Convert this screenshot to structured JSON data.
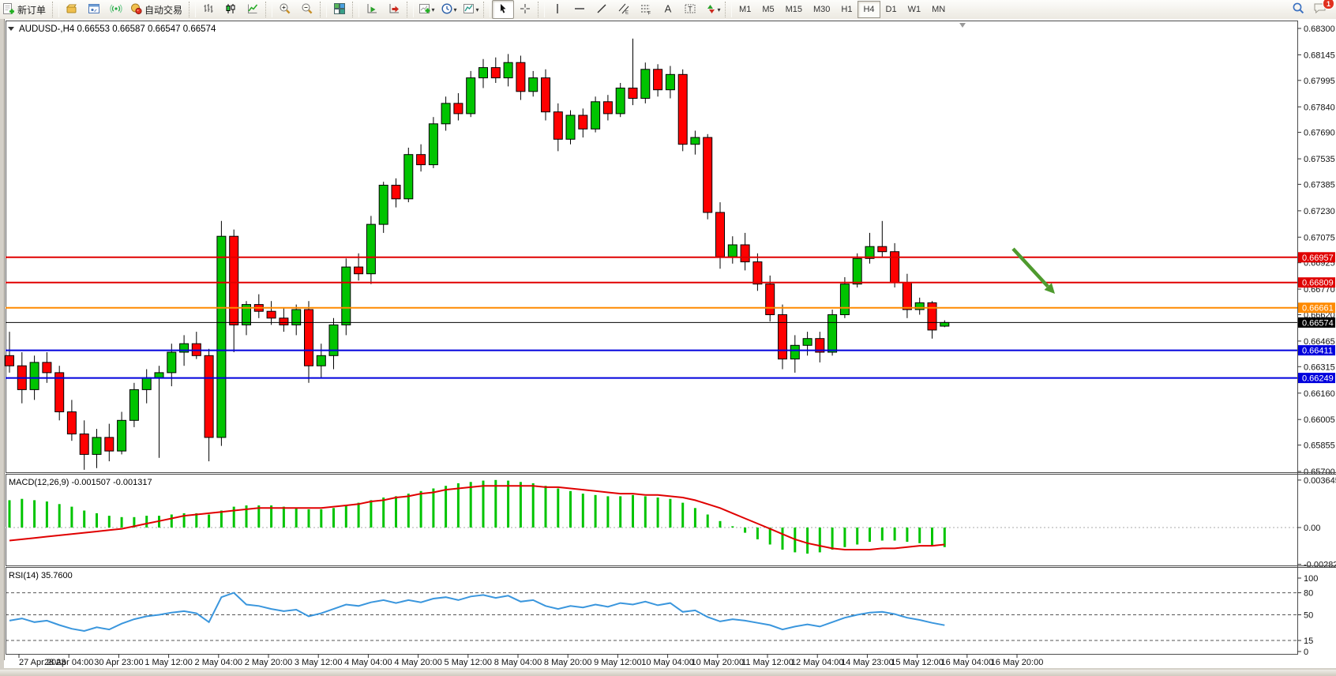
{
  "toolbar": {
    "new_order_label": "新订单",
    "autotrade_label": "自动交易",
    "timeframes": [
      "M1",
      "M5",
      "M15",
      "M30",
      "H1",
      "H4",
      "D1",
      "W1",
      "MN"
    ],
    "active_timeframe": "H4",
    "notification_count": "1"
  },
  "chart": {
    "symbol_period": "AUDUSD-,H4",
    "ohlc_line": "0.66553 0.66587 0.66547 0.66574"
  },
  "chart_data": {
    "type": "candlestick",
    "symbol": "AUDUSD",
    "period": "H4",
    "title": "AUDUSD-,H4",
    "price_ticks": [
      "0.68300",
      "0.68145",
      "0.67995",
      "0.67840",
      "0.67690",
      "0.67535",
      "0.67385",
      "0.67230",
      "0.67075",
      "0.66925",
      "0.66770",
      "0.66620",
      "0.66465",
      "0.66315",
      "0.66160",
      "0.66005",
      "0.65855",
      "0.65700"
    ],
    "x_labels": [
      "27 Apr 2023",
      "28 Apr 04:00",
      "30 Apr 23:00",
      "1 May 12:00",
      "2 May 04:00",
      "2 May 20:00",
      "3 May 12:00",
      "4 May 04:00",
      "4 May 20:00",
      "5 May 12:00",
      "8 May 04:00",
      "8 May 20:00",
      "9 May 12:00",
      "10 May 04:00",
      "10 May 20:00",
      "11 May 12:00",
      "12 May 04:00",
      "14 May 23:00",
      "15 May 12:00",
      "16 May 04:00",
      "16 May 20:00"
    ],
    "candles": [
      [
        0.6638,
        0.6652,
        0.6628,
        0.6632
      ],
      [
        0.6632,
        0.664,
        0.661,
        0.6618
      ],
      [
        0.6618,
        0.6638,
        0.6612,
        0.6634
      ],
      [
        0.6634,
        0.664,
        0.6622,
        0.6628
      ],
      [
        0.6628,
        0.6632,
        0.66,
        0.6605
      ],
      [
        0.6605,
        0.6612,
        0.6588,
        0.6592
      ],
      [
        0.6592,
        0.66,
        0.6571,
        0.658
      ],
      [
        0.658,
        0.6595,
        0.6572,
        0.659
      ],
      [
        0.659,
        0.6598,
        0.6576,
        0.6582
      ],
      [
        0.6582,
        0.6605,
        0.658,
        0.66
      ],
      [
        0.66,
        0.6622,
        0.6596,
        0.6618
      ],
      [
        0.6618,
        0.663,
        0.661,
        0.6625
      ],
      [
        0.6625,
        0.6632,
        0.6578,
        0.6628
      ],
      [
        0.6628,
        0.6645,
        0.662,
        0.664
      ],
      [
        0.664,
        0.665,
        0.6632,
        0.6645
      ],
      [
        0.6645,
        0.6652,
        0.6636,
        0.6638
      ],
      [
        0.6638,
        0.6642,
        0.6576,
        0.659
      ],
      [
        0.659,
        0.6717,
        0.6585,
        0.6708
      ],
      [
        0.6708,
        0.6712,
        0.664,
        0.6656
      ],
      [
        0.6656,
        0.667,
        0.665,
        0.6668
      ],
      [
        0.6668,
        0.6674,
        0.666,
        0.6664
      ],
      [
        0.6664,
        0.667,
        0.6656,
        0.666
      ],
      [
        0.666,
        0.6666,
        0.6652,
        0.6656
      ],
      [
        0.6656,
        0.6668,
        0.665,
        0.6665
      ],
      [
        0.6665,
        0.667,
        0.6622,
        0.6632
      ],
      [
        0.6632,
        0.6645,
        0.6625,
        0.6638
      ],
      [
        0.6638,
        0.666,
        0.663,
        0.6656
      ],
      [
        0.6656,
        0.6695,
        0.665,
        0.669
      ],
      [
        0.669,
        0.6698,
        0.6682,
        0.6686
      ],
      [
        0.6686,
        0.672,
        0.668,
        0.6715
      ],
      [
        0.6715,
        0.674,
        0.671,
        0.6738
      ],
      [
        0.6738,
        0.6742,
        0.6725,
        0.673
      ],
      [
        0.673,
        0.676,
        0.6728,
        0.6756
      ],
      [
        0.6756,
        0.6762,
        0.6746,
        0.675
      ],
      [
        0.675,
        0.6778,
        0.6748,
        0.6774
      ],
      [
        0.6774,
        0.679,
        0.677,
        0.6786
      ],
      [
        0.6786,
        0.6792,
        0.6776,
        0.678
      ],
      [
        0.678,
        0.6805,
        0.6778,
        0.6801
      ],
      [
        0.6801,
        0.6812,
        0.6795,
        0.6807
      ],
      [
        0.6807,
        0.6813,
        0.6798,
        0.6801
      ],
      [
        0.6801,
        0.6815,
        0.6796,
        0.681
      ],
      [
        0.681,
        0.6814,
        0.6788,
        0.6793
      ],
      [
        0.6793,
        0.6805,
        0.679,
        0.6801
      ],
      [
        0.6801,
        0.6806,
        0.6776,
        0.6781
      ],
      [
        0.6781,
        0.6786,
        0.6758,
        0.6765
      ],
      [
        0.6765,
        0.6782,
        0.6762,
        0.6779
      ],
      [
        0.6779,
        0.6783,
        0.6766,
        0.6771
      ],
      [
        0.6771,
        0.679,
        0.6769,
        0.6787
      ],
      [
        0.6787,
        0.6791,
        0.6776,
        0.678
      ],
      [
        0.678,
        0.6798,
        0.6778,
        0.6795
      ],
      [
        0.6795,
        0.6824,
        0.6785,
        0.6789
      ],
      [
        0.6789,
        0.681,
        0.6786,
        0.6806
      ],
      [
        0.6806,
        0.6809,
        0.679,
        0.6794
      ],
      [
        0.6794,
        0.6808,
        0.6789,
        0.6803
      ],
      [
        0.6803,
        0.6806,
        0.6758,
        0.6762
      ],
      [
        0.6762,
        0.677,
        0.6756,
        0.6766
      ],
      [
        0.6766,
        0.6768,
        0.6718,
        0.6722
      ],
      [
        0.6722,
        0.6728,
        0.6689,
        0.6696
      ],
      [
        0.6696,
        0.6708,
        0.6692,
        0.6703
      ],
      [
        0.6703,
        0.671,
        0.6688,
        0.6693
      ],
      [
        0.6693,
        0.6698,
        0.6676,
        0.668
      ],
      [
        0.668,
        0.6685,
        0.6658,
        0.6662
      ],
      [
        0.6662,
        0.6668,
        0.663,
        0.6636
      ],
      [
        0.6636,
        0.665,
        0.6628,
        0.6644
      ],
      [
        0.6644,
        0.6652,
        0.6638,
        0.6648
      ],
      [
        0.6648,
        0.6652,
        0.6634,
        0.664
      ],
      [
        0.664,
        0.6665,
        0.6638,
        0.6662
      ],
      [
        0.6662,
        0.6684,
        0.666,
        0.668
      ],
      [
        0.668,
        0.6698,
        0.6678,
        0.6695
      ],
      [
        0.6695,
        0.671,
        0.6692,
        0.6702
      ],
      [
        0.6702,
        0.6717,
        0.6696,
        0.6699
      ],
      [
        0.6699,
        0.6704,
        0.6678,
        0.6681
      ],
      [
        0.6681,
        0.6686,
        0.666,
        0.6665
      ],
      [
        0.6665,
        0.6672,
        0.6662,
        0.6669
      ],
      [
        0.6669,
        0.667,
        0.6648,
        0.6653
      ],
      [
        0.66553,
        0.66587,
        0.66547,
        0.66574
      ]
    ],
    "horizontal_lines": [
      {
        "price": 0.66957,
        "label": "0.66957",
        "color": "#e00000",
        "width": 2
      },
      {
        "price": 0.66809,
        "label": "0.66809",
        "color": "#e00000",
        "width": 2
      },
      {
        "price": 0.66661,
        "label": "0.66661",
        "color": "#ff8a00",
        "width": 2
      },
      {
        "price": 0.66574,
        "label": "0.66574",
        "color": "#000000",
        "width": 1,
        "current": true
      },
      {
        "price": 0.66411,
        "label": "0.66411",
        "color": "#0000dd",
        "width": 2
      },
      {
        "price": 0.66249,
        "label": "0.66249",
        "color": "#0000dd",
        "width": 2
      }
    ],
    "indicators": {
      "macd": {
        "name": "MACD(12,26,9)",
        "values_text": "-0.001507 -0.001317",
        "axis_labels": [
          "0.003645",
          "0.00",
          "-0.002824"
        ],
        "histogram": [
          0.0021,
          0.0022,
          0.0021,
          0.002,
          0.0018,
          0.0016,
          0.0013,
          0.0011,
          0.0009,
          0.0008,
          0.0008,
          0.0009,
          0.0009,
          0.001,
          0.0011,
          0.0011,
          0.001,
          0.0013,
          0.0016,
          0.0017,
          0.0017,
          0.0017,
          0.0016,
          0.0015,
          0.0014,
          0.0014,
          0.0015,
          0.0017,
          0.0019,
          0.0021,
          0.0023,
          0.0024,
          0.0026,
          0.0028,
          0.003,
          0.0032,
          0.0034,
          0.0035,
          0.0036,
          0.00365,
          0.0036,
          0.0035,
          0.0034,
          0.0032,
          0.003,
          0.0028,
          0.0026,
          0.0025,
          0.0024,
          0.0024,
          0.0025,
          0.0024,
          0.0023,
          0.0022,
          0.0019,
          0.0015,
          0.001,
          0.0005,
          0.0001,
          -0.0004,
          -0.0009,
          -0.0013,
          -0.0017,
          -0.0019,
          -0.002,
          -0.0019,
          -0.0017,
          -0.0015,
          -0.0013,
          -0.0011,
          -0.001,
          -0.001,
          -0.0011,
          -0.0012,
          -0.0014,
          -0.0015
        ],
        "signal": [
          -0.001,
          -0.0009,
          -0.0008,
          -0.0007,
          -0.0006,
          -0.0005,
          -0.0004,
          -0.0003,
          -0.0002,
          -0.0001,
          0.0001,
          0.0003,
          0.0005,
          0.0007,
          0.0009,
          0.001,
          0.0011,
          0.0012,
          0.0013,
          0.0014,
          0.0015,
          0.0015,
          0.0015,
          0.0015,
          0.0015,
          0.0015,
          0.0016,
          0.0017,
          0.0018,
          0.002,
          0.0021,
          0.0023,
          0.0024,
          0.0026,
          0.0027,
          0.0029,
          0.003,
          0.0031,
          0.0032,
          0.0032,
          0.0032,
          0.0032,
          0.0032,
          0.0031,
          0.0031,
          0.003,
          0.0029,
          0.0028,
          0.0027,
          0.0026,
          0.0026,
          0.0025,
          0.0025,
          0.0024,
          0.0023,
          0.0021,
          0.0018,
          0.0015,
          0.0011,
          0.0007,
          0.0003,
          -0.0001,
          -0.0005,
          -0.0009,
          -0.0012,
          -0.0014,
          -0.0016,
          -0.0017,
          -0.0017,
          -0.0017,
          -0.0016,
          -0.0016,
          -0.0015,
          -0.0014,
          -0.0014,
          -0.0013
        ]
      },
      "rsi": {
        "name": "RSI(14)",
        "values_text": "35.7600",
        "levels": [
          80,
          50,
          15
        ],
        "axis_labels": [
          "100",
          "80",
          "50",
          "15",
          "0"
        ],
        "values": [
          42,
          45,
          40,
          42,
          36,
          31,
          28,
          33,
          30,
          38,
          44,
          48,
          50,
          53,
          55,
          52,
          40,
          74,
          80,
          64,
          62,
          58,
          55,
          57,
          48,
          52,
          58,
          64,
          62,
          67,
          70,
          66,
          70,
          67,
          72,
          74,
          70,
          75,
          77,
          73,
          76,
          68,
          70,
          62,
          58,
          62,
          60,
          64,
          61,
          66,
          64,
          68,
          63,
          66,
          54,
          56,
          47,
          41,
          44,
          42,
          39,
          36,
          30,
          34,
          37,
          34,
          40,
          46,
          50,
          53,
          54,
          51,
          46,
          43,
          39,
          35.76
        ]
      }
    },
    "colors": {
      "up": "#00c400",
      "down": "#ff0000",
      "wick": "#000000",
      "macd_hist": "#00c400",
      "macd_signal": "#e00000",
      "rsi_line": "#3a96dd",
      "arrow": "#4e9a2e"
    },
    "annotation_arrow": {
      "note": "green-down-right-arrow"
    }
  }
}
